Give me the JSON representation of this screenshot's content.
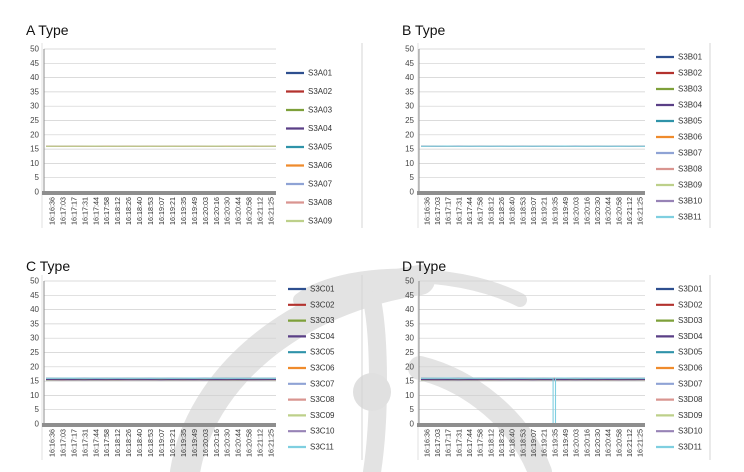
{
  "chart_data": [
    {
      "type": "line",
      "title": "A Type",
      "xlabel": "",
      "ylabel": "",
      "ylim": [
        0,
        50
      ],
      "yticks": [
        0,
        5,
        10,
        15,
        20,
        25,
        30,
        35,
        40,
        45,
        50
      ],
      "x": [
        "16:16:36",
        "16:17:03",
        "16:17:17",
        "16:17:31",
        "16:17:44",
        "16:17:58",
        "16:18:12",
        "16:18:26",
        "16:18:40",
        "16:18:53",
        "16:19:07",
        "16:19:21",
        "16:19:35",
        "16:19:49",
        "16:20:03",
        "16:20:16",
        "16:20:30",
        "16:20:44",
        "16:20:58",
        "16:21:12",
        "16:21:25"
      ],
      "grid": true,
      "legend_position": "right",
      "series": [
        {
          "name": "S3A01",
          "color": "#2e4f8f",
          "level": 16
        },
        {
          "name": "S3A02",
          "color": "#b3322e",
          "level": 16
        },
        {
          "name": "S3A03",
          "color": "#7ea03a",
          "level": 16
        },
        {
          "name": "S3A04",
          "color": "#5a3f86",
          "level": 16
        },
        {
          "name": "S3A05",
          "color": "#2f93a9",
          "level": 16
        },
        {
          "name": "S3A06",
          "color": "#ef8b2c",
          "level": 16
        },
        {
          "name": "S3A07",
          "color": "#8fa3d5",
          "level": 16
        },
        {
          "name": "S3A08",
          "color": "#d99590",
          "level": 16
        },
        {
          "name": "S3A09",
          "color": "#bdd08a",
          "level": 16
        }
      ]
    },
    {
      "type": "line",
      "title": "B Type",
      "xlabel": "",
      "ylabel": "",
      "ylim": [
        0,
        50
      ],
      "yticks": [
        0,
        5,
        10,
        15,
        20,
        25,
        30,
        35,
        40,
        45,
        50
      ],
      "x": [
        "16:16:36",
        "16:17:03",
        "16:17:17",
        "16:17:31",
        "16:17:44",
        "16:17:58",
        "16:18:12",
        "16:18:26",
        "16:18:40",
        "16:18:53",
        "16:19:07",
        "16:19:21",
        "16:19:35",
        "16:19:49",
        "16:20:03",
        "16:20:16",
        "16:20:30",
        "16:20:44",
        "16:20:58",
        "16:21:12",
        "16:21:25"
      ],
      "grid": true,
      "legend_position": "right",
      "series": [
        {
          "name": "S3B01",
          "color": "#2e4f8f",
          "level": 16
        },
        {
          "name": "S3B02",
          "color": "#b3322e",
          "level": 16
        },
        {
          "name": "S3B03",
          "color": "#7ea03a",
          "level": 16
        },
        {
          "name": "S3B04",
          "color": "#5a3f86",
          "level": 16
        },
        {
          "name": "S3B05",
          "color": "#2f93a9",
          "level": 16
        },
        {
          "name": "S3B06",
          "color": "#ef8b2c",
          "level": 16
        },
        {
          "name": "S3B07",
          "color": "#8fa3d5",
          "level": 16
        },
        {
          "name": "S3B08",
          "color": "#d99590",
          "level": 16
        },
        {
          "name": "S3B09",
          "color": "#bdd08a",
          "level": 16
        },
        {
          "name": "S3B10",
          "color": "#9783b6",
          "level": 16
        },
        {
          "name": "S3B11",
          "color": "#7fcfe0",
          "level": 16
        }
      ]
    },
    {
      "type": "line",
      "title": "C Type",
      "xlabel": "",
      "ylabel": "",
      "ylim": [
        0,
        50
      ],
      "yticks": [
        0,
        5,
        10,
        15,
        20,
        25,
        30,
        35,
        40,
        45,
        50
      ],
      "x": [
        "16:16:36",
        "16:17:03",
        "16:17:17",
        "16:17:31",
        "16:17:44",
        "16:17:58",
        "16:18:12",
        "16:18:26",
        "16:18:40",
        "16:18:53",
        "16:19:07",
        "16:19:21",
        "16:19:35",
        "16:19:49",
        "16:20:03",
        "16:20:16",
        "16:20:30",
        "16:20:44",
        "16:20:58",
        "16:21:12",
        "16:21:25"
      ],
      "grid": true,
      "legend_position": "right",
      "series": [
        {
          "name": "S3C01",
          "color": "#2e4f8f",
          "level": 15.5
        },
        {
          "name": "S3C02",
          "color": "#b3322e",
          "level": 15.5
        },
        {
          "name": "S3C03",
          "color": "#7ea03a",
          "level": 15.5
        },
        {
          "name": "S3C04",
          "color": "#5a3f86",
          "level": 15.5
        },
        {
          "name": "S3C05",
          "color": "#2f93a9",
          "level": 16
        },
        {
          "name": "S3C06",
          "color": "#ef8b2c",
          "level": 16
        },
        {
          "name": "S3C07",
          "color": "#8fa3d5",
          "level": 16
        },
        {
          "name": "S3C08",
          "color": "#d99590",
          "level": 16
        },
        {
          "name": "S3C09",
          "color": "#bdd08a",
          "level": 16
        },
        {
          "name": "S3C10",
          "color": "#9783b6",
          "level": 16
        },
        {
          "name": "S3C11",
          "color": "#7fcfe0",
          "level": 16
        }
      ]
    },
    {
      "type": "line",
      "title": "D Type",
      "xlabel": "",
      "ylabel": "",
      "ylim": [
        0,
        50
      ],
      "yticks": [
        0,
        5,
        10,
        15,
        20,
        25,
        30,
        35,
        40,
        45,
        50
      ],
      "x": [
        "16:16:36",
        "16:17:03",
        "16:17:17",
        "16:17:31",
        "16:17:44",
        "16:17:58",
        "16:18:12",
        "16:18:26",
        "16:18:40",
        "16:18:53",
        "16:19:07",
        "16:19:21",
        "16:19:35",
        "16:19:49",
        "16:20:03",
        "16:20:16",
        "16:20:30",
        "16:20:44",
        "16:20:58",
        "16:21:12",
        "16:21:25"
      ],
      "grid": true,
      "legend_position": "right",
      "series": [
        {
          "name": "S3D01",
          "color": "#2e4f8f",
          "level": 15.5
        },
        {
          "name": "S3D02",
          "color": "#b3322e",
          "level": 15.5
        },
        {
          "name": "S3D03",
          "color": "#7ea03a",
          "level": 15.5
        },
        {
          "name": "S3D04",
          "color": "#5a3f86",
          "level": 15.5
        },
        {
          "name": "S3D05",
          "color": "#2f93a9",
          "level": 16
        },
        {
          "name": "S3D06",
          "color": "#ef8b2c",
          "level": 16
        },
        {
          "name": "S3D07",
          "color": "#8fa3d5",
          "level": 16
        },
        {
          "name": "S3D08",
          "color": "#d99590",
          "level": 16
        },
        {
          "name": "S3D09",
          "color": "#bdd08a",
          "level": 16
        },
        {
          "name": "S3D10",
          "color": "#9783b6",
          "level": 16
        },
        {
          "name": "S3D11",
          "color": "#7fcfe0",
          "level": 16,
          "dip": {
            "at": "16:19:35",
            "value": 0
          }
        }
      ]
    }
  ]
}
